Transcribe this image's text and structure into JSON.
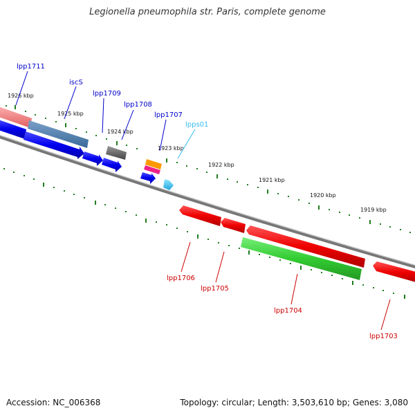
{
  "title": "Legionella pneumophila str. Paris, complete genome",
  "footer": {
    "accession": "Accession: NC_006368",
    "topology": "Topology: circular; Length: 3,503,610 bp; Genes: 3,080"
  },
  "kbp_labels": [
    "1926 kbp",
    "1925 kbp",
    "1924 kbp",
    "1923 kbp",
    "1922 kbp",
    "1921 kbp",
    "1920 kbp",
    "1919 kbp"
  ],
  "genes_forward": [
    "lpp1711",
    "iscS",
    "lpp1709",
    "lpp1708",
    "lpp1707",
    "lpps01"
  ],
  "genes_reverse": [
    "lpp1706",
    "lpp1705",
    "lpp1704",
    "lpp1703"
  ],
  "colors": {
    "backbone": "#808080",
    "tick": "#1e7d1e",
    "forward_label": "#0000cc",
    "rna_label": "#33bbee",
    "reverse_label": "#cc0000"
  }
}
